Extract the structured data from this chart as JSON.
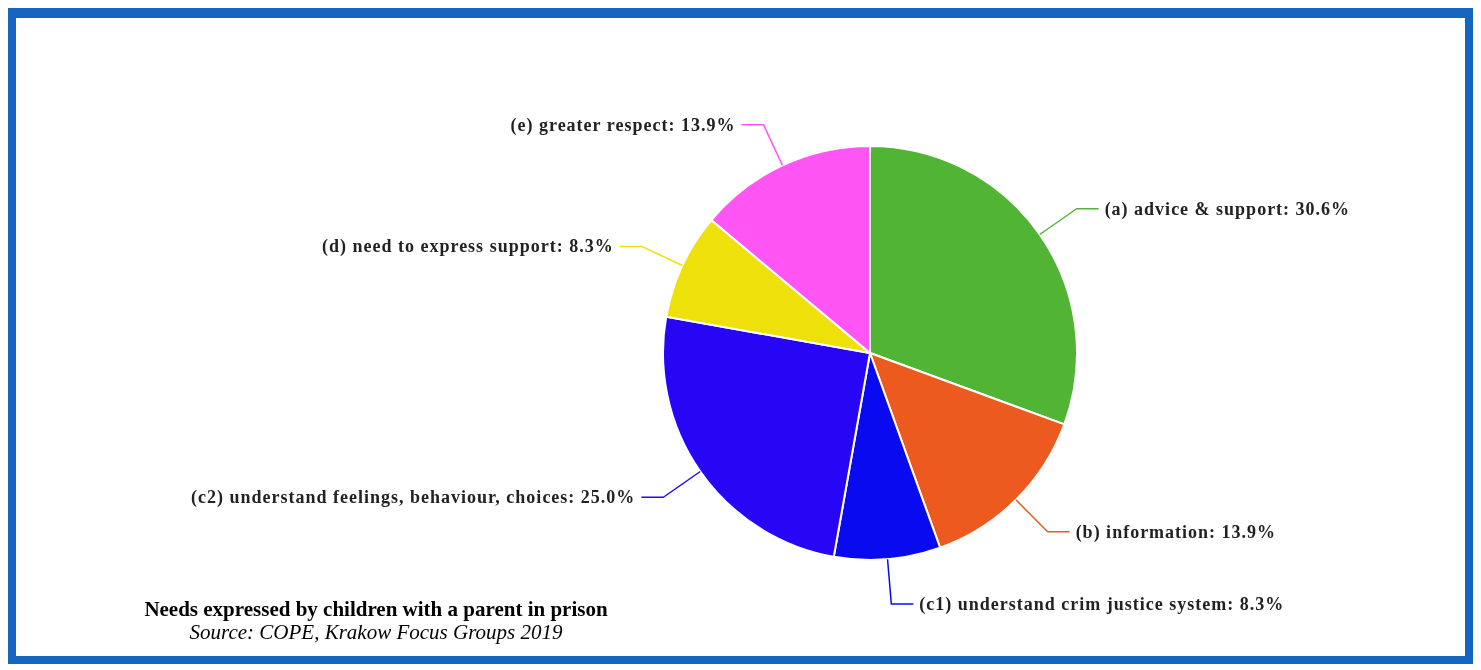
{
  "chart_data": {
    "type": "pie",
    "title": "Needs expressed by children with a parent in prison",
    "annotations": [
      "Source: COPE, Krakow Focus Groups 2019"
    ],
    "categories": [
      "(a) advice & support",
      "(b) information",
      "(c1) understand crim justice system",
      "(c2) understand feelings, behaviour, choices",
      "(d) need to express support",
      "(e) greater respect"
    ],
    "values": [
      30.6,
      13.9,
      8.3,
      25.0,
      8.3,
      13.9
    ],
    "value_labels": [
      "30.6%",
      "13.9%",
      "8.3%",
      "25.0%",
      "8.3%",
      "13.9%"
    ],
    "colors": [
      "#52b435",
      "#ec5a1f",
      "#0a0af0",
      "#2606f5",
      "#eee00a",
      "#ff55f5"
    ],
    "legend": false
  }
}
